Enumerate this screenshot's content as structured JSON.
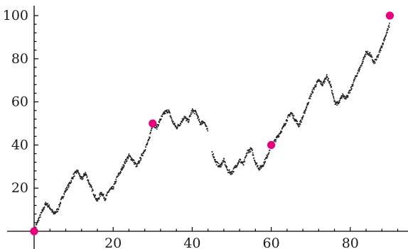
{
  "chart_data": {
    "type": "scatter",
    "title": "",
    "xlabel": "",
    "ylabel": "",
    "xlim": [
      0,
      94
    ],
    "ylim": [
      0,
      100
    ],
    "x_ticks": [
      20,
      40,
      60,
      80
    ],
    "y_ticks": [
      20,
      40,
      60,
      80,
      100
    ],
    "x_tick_labels": [
      "20",
      "40",
      "60",
      "80"
    ],
    "y_tick_labels": [
      "20",
      "40",
      "60",
      "80",
      "100"
    ],
    "grid": false,
    "legend": "none",
    "series": [
      {
        "kind": "dotted-path",
        "color": "#222222",
        "points": [
          [
            0,
            0
          ],
          [
            1,
            5
          ],
          [
            2,
            9
          ],
          [
            3,
            13
          ],
          [
            4,
            11
          ],
          [
            5,
            8
          ],
          [
            6,
            10
          ],
          [
            7,
            15
          ],
          [
            8,
            19
          ],
          [
            9,
            22
          ],
          [
            10,
            26
          ],
          [
            11,
            28
          ],
          [
            12,
            24
          ],
          [
            13,
            27
          ],
          [
            14,
            22
          ],
          [
            15,
            18
          ],
          [
            16,
            14
          ],
          [
            17,
            18
          ],
          [
            18,
            15
          ],
          [
            19,
            19
          ],
          [
            20,
            20
          ],
          [
            21,
            25
          ],
          [
            22,
            28
          ],
          [
            23,
            32
          ],
          [
            24,
            35
          ],
          [
            25,
            33
          ],
          [
            26,
            30
          ],
          [
            27,
            34
          ],
          [
            28,
            38
          ],
          [
            29,
            42
          ],
          [
            30,
            50
          ],
          [
            31,
            48
          ],
          [
            32,
            52
          ],
          [
            33,
            55
          ],
          [
            34,
            56
          ],
          [
            35,
            51
          ],
          [
            36,
            48
          ],
          [
            37,
            50
          ],
          [
            38,
            53
          ],
          [
            39,
            51
          ],
          [
            40,
            56
          ],
          [
            41,
            55
          ],
          [
            42,
            50
          ],
          [
            43,
            51
          ],
          [
            44,
            46
          ],
          null,
          [
            45,
            37
          ],
          [
            46,
            32
          ],
          [
            47,
            30
          ],
          [
            48,
            33
          ],
          [
            49,
            28
          ],
          [
            50,
            27
          ],
          [
            51,
            30
          ],
          [
            52,
            33
          ],
          [
            53,
            31
          ],
          [
            54,
            37
          ],
          [
            55,
            38
          ],
          [
            56,
            32
          ],
          [
            57,
            29
          ],
          [
            58,
            31
          ],
          [
            59,
            35
          ],
          [
            60,
            40
          ],
          [
            61,
            42
          ],
          [
            62,
            45
          ],
          [
            63,
            48
          ],
          [
            64,
            52
          ],
          [
            65,
            55
          ],
          [
            66,
            52
          ],
          [
            67,
            49
          ],
          [
            68,
            53
          ],
          [
            69,
            58
          ],
          [
            70,
            63
          ],
          [
            71,
            67
          ],
          [
            72,
            70
          ],
          [
            73,
            68
          ],
          [
            74,
            72
          ],
          [
            75,
            68
          ],
          [
            76,
            60
          ],
          [
            77,
            59
          ],
          [
            78,
            63
          ],
          [
            79,
            62
          ],
          [
            80,
            65
          ],
          [
            81,
            70
          ],
          [
            82,
            74
          ],
          [
            83,
            78
          ],
          [
            84,
            83
          ],
          [
            85,
            82
          ],
          [
            86,
            78
          ],
          [
            87,
            81
          ],
          [
            88,
            86
          ],
          [
            89,
            91
          ],
          [
            90,
            96
          ]
        ]
      },
      {
        "kind": "markers",
        "color": "#e6007e",
        "points": [
          [
            0,
            0
          ],
          [
            30,
            50
          ],
          [
            60,
            40
          ],
          [
            90,
            100
          ]
        ]
      }
    ]
  }
}
